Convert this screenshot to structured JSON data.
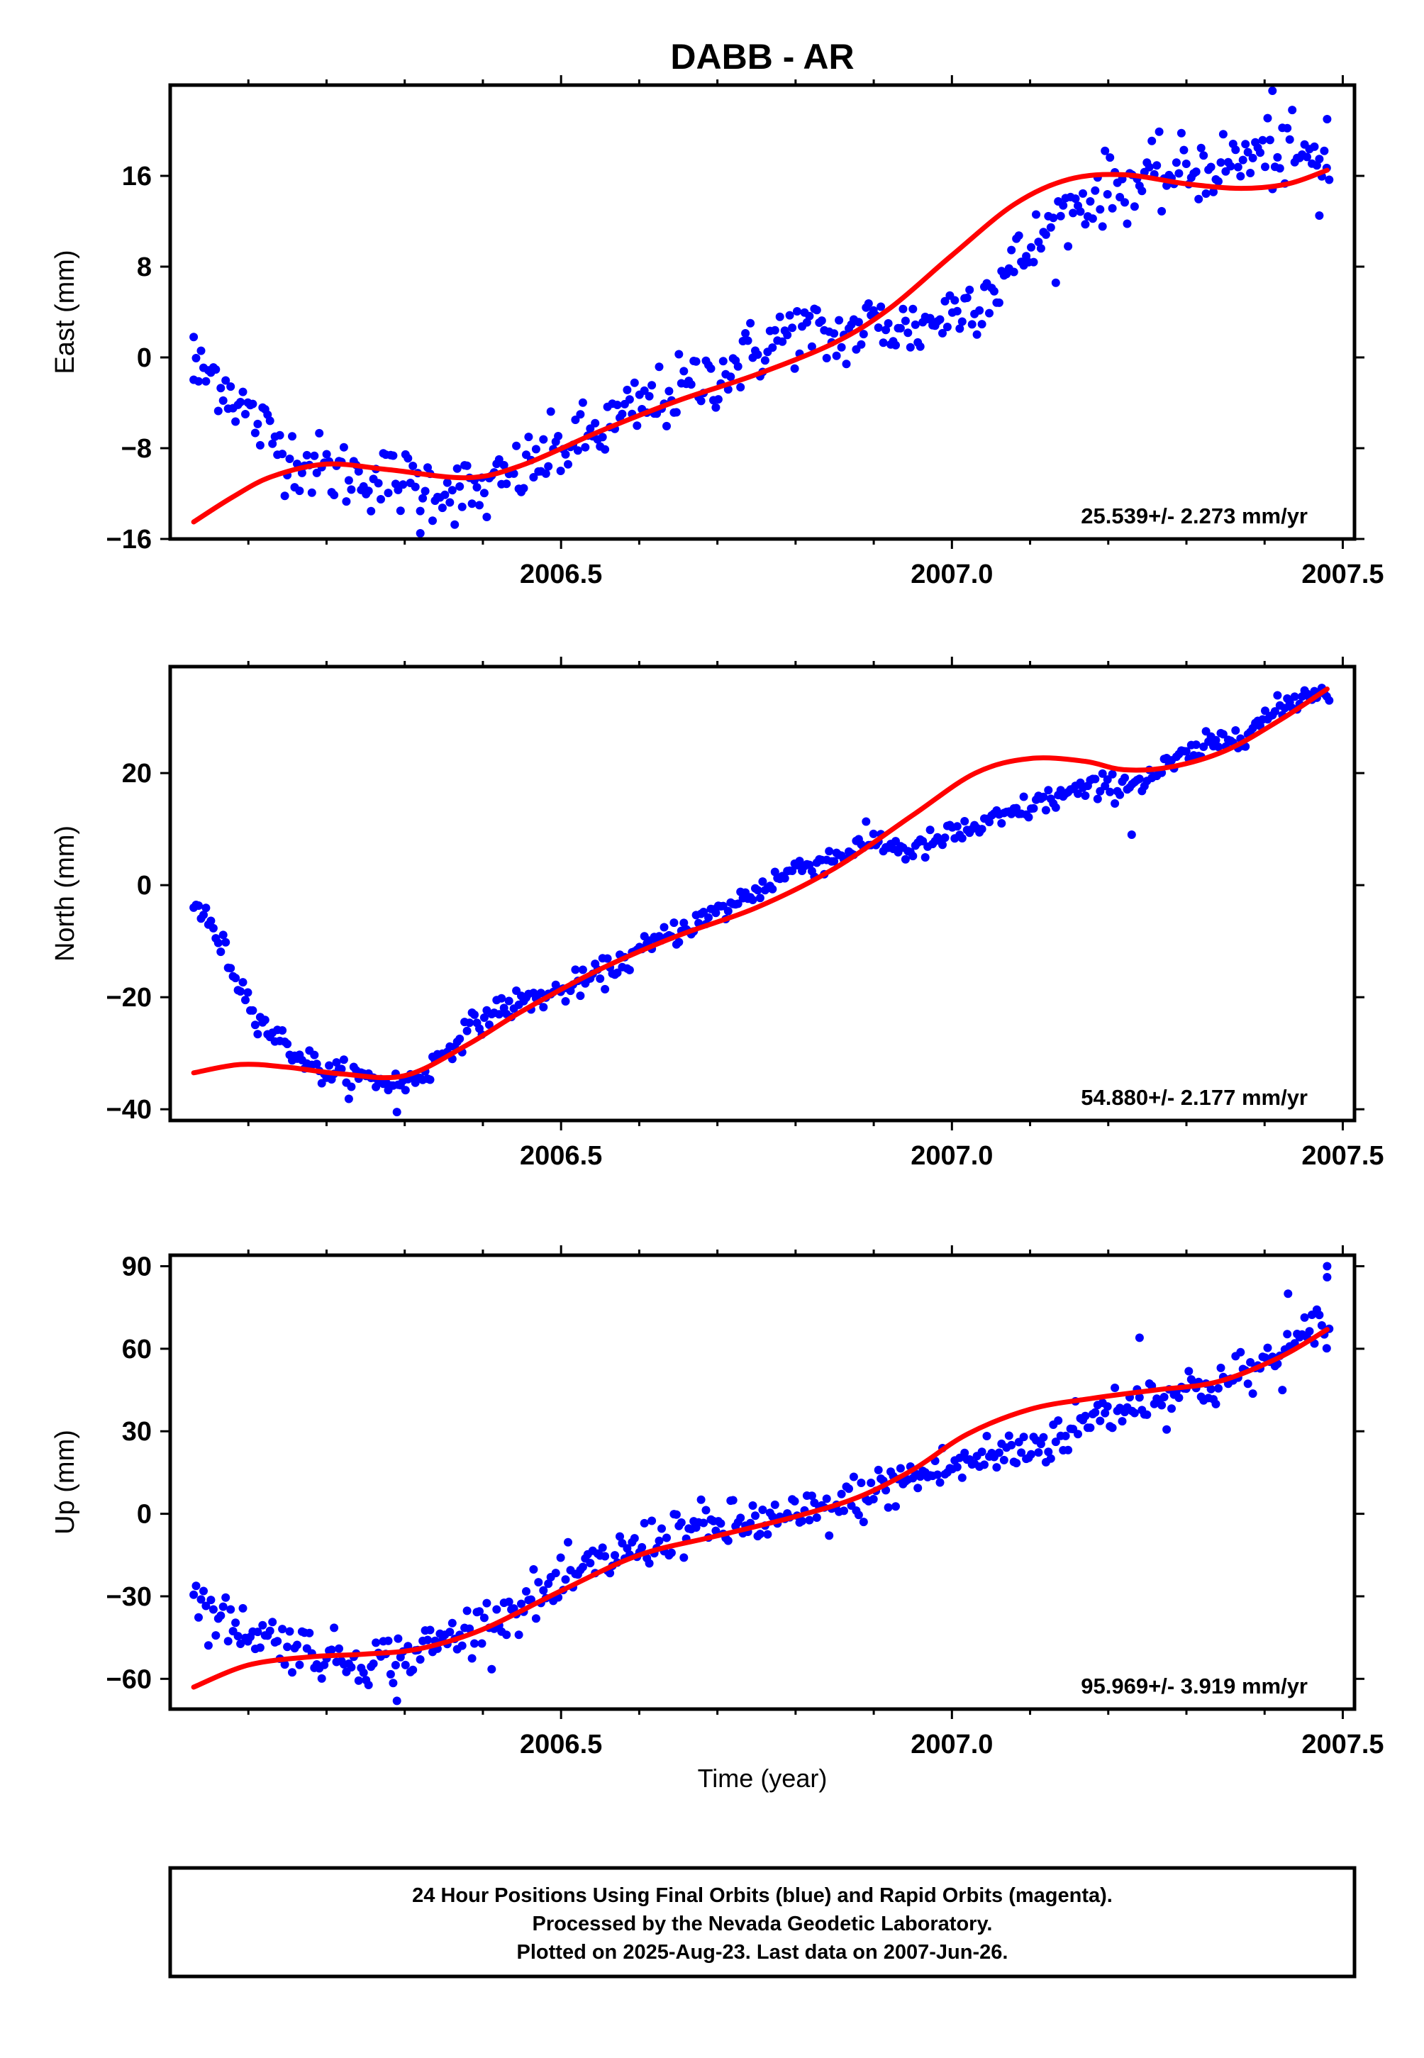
{
  "title": "DABB - AR",
  "colors": {
    "final": "#0000ff",
    "rapid": "#ff00ff",
    "model": "#ff0000",
    "frame": "#000000"
  },
  "chart_data": [
    {
      "type": "scatter",
      "name": "east",
      "ylabel": "East (mm)",
      "xlabel": "",
      "xlim": [
        2006.0,
        2007.515
      ],
      "ylim": [
        -16,
        24
      ],
      "xticks": [
        2006.5,
        2007.0,
        2007.5
      ],
      "xtick_labels": [
        "2006.5",
        "2007.0",
        "2007.5"
      ],
      "yticks": [
        -16,
        -8,
        0,
        8,
        16
      ],
      "ytick_labels": [
        "−16",
        "−8",
        "0",
        "8",
        "16"
      ],
      "rate_label": "25.539+/- 2.273 mm/yr",
      "anchors": [
        [
          2006.03,
          -1.5
        ],
        [
          2006.06,
          -1.5
        ],
        [
          2006.1,
          -5
        ],
        [
          2006.15,
          -8.5
        ],
        [
          2006.2,
          -10
        ],
        [
          2006.25,
          -10.5
        ],
        [
          2006.3,
          -11
        ],
        [
          2006.35,
          -11.5
        ],
        [
          2006.4,
          -12
        ],
        [
          2006.45,
          -10
        ],
        [
          2006.5,
          -8
        ],
        [
          2006.55,
          -6.5
        ],
        [
          2006.6,
          -4.5
        ],
        [
          2006.65,
          -3
        ],
        [
          2006.7,
          -1.5
        ],
        [
          2006.75,
          0.5
        ],
        [
          2006.8,
          2.5
        ],
        [
          2006.85,
          1.5
        ],
        [
          2006.9,
          3
        ],
        [
          2006.95,
          2.5
        ],
        [
          2007.0,
          4
        ],
        [
          2007.05,
          6
        ],
        [
          2007.1,
          9.5
        ],
        [
          2007.15,
          13
        ],
        [
          2007.2,
          15
        ],
        [
          2007.25,
          15.5
        ],
        [
          2007.3,
          16.5
        ],
        [
          2007.35,
          17
        ],
        [
          2007.4,
          18
        ],
        [
          2007.45,
          17.5
        ],
        [
          2007.48,
          17
        ]
      ],
      "scatter_sd": 1.5,
      "outliers": [
        [
          2006.03,
          1.8
        ],
        [
          2006.32,
          -15.5
        ],
        [
          2007.41,
          23.5
        ],
        [
          2007.48,
          21
        ],
        [
          2007.47,
          12.5
        ]
      ],
      "model": [
        [
          2006.03,
          -14.5
        ],
        [
          2006.08,
          -12.3
        ],
        [
          2006.13,
          -10.5
        ],
        [
          2006.2,
          -9.4
        ],
        [
          2006.28,
          -9.9
        ],
        [
          2006.38,
          -10.6
        ],
        [
          2006.45,
          -9.5
        ],
        [
          2006.55,
          -6.5
        ],
        [
          2006.65,
          -3.8
        ],
        [
          2006.75,
          -1.5
        ],
        [
          2006.85,
          1.3
        ],
        [
          2006.92,
          4.3
        ],
        [
          2007.0,
          9
        ],
        [
          2007.08,
          13.5
        ],
        [
          2007.15,
          15.7
        ],
        [
          2007.22,
          16.1
        ],
        [
          2007.3,
          15.3
        ],
        [
          2007.37,
          14.9
        ],
        [
          2007.43,
          15.3
        ],
        [
          2007.48,
          16.5
        ]
      ]
    },
    {
      "type": "scatter",
      "name": "north",
      "ylabel": "North (mm)",
      "xlabel": "",
      "xlim": [
        2006.0,
        2007.515
      ],
      "ylim": [
        -42,
        39
      ],
      "xticks": [
        2006.5,
        2007.0,
        2007.5
      ],
      "xtick_labels": [
        "2006.5",
        "2007.0",
        "2007.5"
      ],
      "yticks": [
        -40,
        -20,
        0,
        20
      ],
      "ytick_labels": [
        "−40",
        "−20",
        "0",
        "20"
      ],
      "rate_label": "54.880+/- 2.177 mm/yr",
      "anchors": [
        [
          2006.03,
          -3
        ],
        [
          2006.06,
          -9
        ],
        [
          2006.09,
          -18
        ],
        [
          2006.12,
          -25
        ],
        [
          2006.16,
          -30
        ],
        [
          2006.2,
          -33.5
        ],
        [
          2006.25,
          -34.5
        ],
        [
          2006.3,
          -35.5
        ],
        [
          2006.33,
          -33
        ],
        [
          2006.37,
          -27
        ],
        [
          2006.42,
          -22
        ],
        [
          2006.5,
          -19
        ],
        [
          2006.55,
          -16
        ],
        [
          2006.6,
          -12
        ],
        [
          2006.65,
          -8
        ],
        [
          2006.7,
          -5
        ],
        [
          2006.75,
          -1
        ],
        [
          2006.8,
          3
        ],
        [
          2006.85,
          5
        ],
        [
          2006.9,
          8
        ],
        [
          2006.95,
          6
        ],
        [
          2007.0,
          9
        ],
        [
          2007.05,
          11
        ],
        [
          2007.1,
          14
        ],
        [
          2007.15,
          16.5
        ],
        [
          2007.2,
          17.5
        ],
        [
          2007.25,
          19
        ],
        [
          2007.3,
          23
        ],
        [
          2007.35,
          26
        ],
        [
          2007.4,
          29.5
        ],
        [
          2007.45,
          34
        ],
        [
          2007.48,
          35
        ]
      ],
      "scatter_sd": 1.2,
      "outliers": [
        [
          2006.29,
          -40.5
        ],
        [
          2007.23,
          9
        ]
      ],
      "model": [
        [
          2006.03,
          -33.5
        ],
        [
          2006.09,
          -32
        ],
        [
          2006.15,
          -32.5
        ],
        [
          2006.22,
          -33.7
        ],
        [
          2006.3,
          -34
        ],
        [
          2006.38,
          -28.5
        ],
        [
          2006.45,
          -22.5
        ],
        [
          2006.55,
          -15
        ],
        [
          2006.65,
          -9
        ],
        [
          2006.75,
          -4
        ],
        [
          2006.85,
          3
        ],
        [
          2006.95,
          12.5
        ],
        [
          2007.03,
          20
        ],
        [
          2007.1,
          22.6
        ],
        [
          2007.17,
          22.1
        ],
        [
          2007.22,
          20.6
        ],
        [
          2007.28,
          21.1
        ],
        [
          2007.35,
          24
        ],
        [
          2007.42,
          29.5
        ],
        [
          2007.48,
          35
        ]
      ]
    },
    {
      "type": "scatter",
      "name": "up",
      "ylabel": "Up (mm)",
      "xlabel": "Time (year)",
      "xlim": [
        2006.0,
        2007.515
      ],
      "ylim": [
        -71,
        94
      ],
      "xticks": [
        2006.5,
        2007.0,
        2007.5
      ],
      "xtick_labels": [
        "2006.5",
        "2007.0",
        "2007.5"
      ],
      "yticks": [
        -60,
        -30,
        0,
        30,
        60,
        90
      ],
      "ytick_labels": [
        "−60",
        "−30",
        "0",
        "30",
        "60",
        "90"
      ],
      "rate_label": "95.969+/- 3.919 mm/yr",
      "anchors": [
        [
          2006.03,
          -30
        ],
        [
          2006.06,
          -38
        ],
        [
          2006.1,
          -42
        ],
        [
          2006.15,
          -47
        ],
        [
          2006.2,
          -52
        ],
        [
          2006.25,
          -53
        ],
        [
          2006.3,
          -52
        ],
        [
          2006.35,
          -46
        ],
        [
          2006.4,
          -40
        ],
        [
          2006.45,
          -33
        ],
        [
          2006.5,
          -26
        ],
        [
          2006.55,
          -18
        ],
        [
          2006.6,
          -12
        ],
        [
          2006.65,
          -6
        ],
        [
          2006.7,
          -5
        ],
        [
          2006.75,
          -3
        ],
        [
          2006.8,
          -2
        ],
        [
          2006.85,
          2
        ],
        [
          2006.9,
          8
        ],
        [
          2006.95,
          13
        ],
        [
          2007.0,
          17
        ],
        [
          2007.05,
          21
        ],
        [
          2007.1,
          24
        ],
        [
          2007.15,
          30
        ],
        [
          2007.2,
          38
        ],
        [
          2007.25,
          42
        ],
        [
          2007.3,
          45
        ],
        [
          2007.35,
          48
        ],
        [
          2007.4,
          54
        ],
        [
          2007.45,
          63
        ],
        [
          2007.48,
          70
        ]
      ],
      "scatter_sd": 4.5,
      "outliers": [
        [
          2006.29,
          -68
        ],
        [
          2007.48,
          90
        ],
        [
          2007.48,
          86
        ],
        [
          2007.24,
          64
        ],
        [
          2007.43,
          80
        ]
      ],
      "model": [
        [
          2006.03,
          -63
        ],
        [
          2006.1,
          -55
        ],
        [
          2006.18,
          -52
        ],
        [
          2006.25,
          -51
        ],
        [
          2006.32,
          -49
        ],
        [
          2006.4,
          -42
        ],
        [
          2006.5,
          -28
        ],
        [
          2006.6,
          -15
        ],
        [
          2006.7,
          -8
        ],
        [
          2006.8,
          -1
        ],
        [
          2006.88,
          6
        ],
        [
          2006.95,
          16
        ],
        [
          2007.02,
          29
        ],
        [
          2007.1,
          38
        ],
        [
          2007.18,
          42
        ],
        [
          2007.26,
          45
        ],
        [
          2007.34,
          48
        ],
        [
          2007.42,
          57
        ],
        [
          2007.48,
          67
        ]
      ]
    }
  ],
  "footer": {
    "line1": "24 Hour Positions Using Final Orbits (blue) and Rapid Orbits (magenta).",
    "line2": "Processed by the Nevada Geodetic Laboratory.",
    "line3": "Plotted on 2025-Aug-23. Last data on 2007-Jun-26."
  }
}
